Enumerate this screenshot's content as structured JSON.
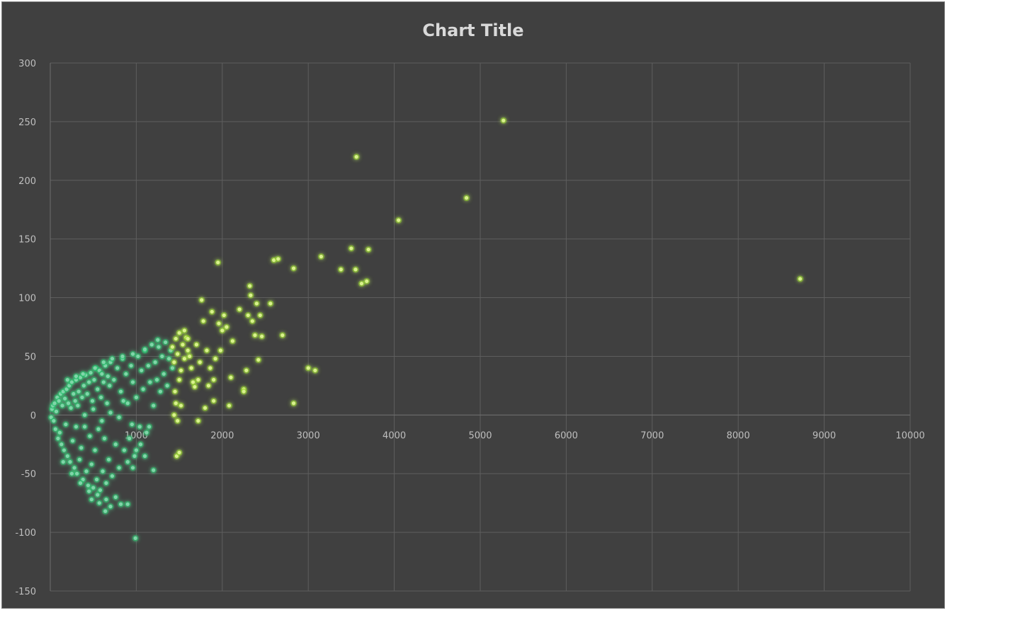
{
  "chart_data": {
    "type": "scatter",
    "title": "Chart Title",
    "xlabel": "",
    "ylabel": "",
    "xlim": [
      0,
      10000
    ],
    "ylim": [
      -150,
      300
    ],
    "x_ticks": [
      "1000",
      "2000",
      "3000",
      "4000",
      "5000",
      "6000",
      "7000",
      "8000",
      "9000",
      "10000"
    ],
    "y_ticks": [
      "300",
      "250",
      "200",
      "150",
      "100",
      "50",
      "0",
      "-50",
      "-100",
      "-150"
    ],
    "grid": true,
    "legend": "none",
    "series": [
      {
        "color": "#7fd6a8",
        "glow": "#1fc06a",
        "points": [
          [
            10,
            -2
          ],
          [
            20,
            5
          ],
          [
            30,
            8
          ],
          [
            40,
            -5
          ],
          [
            50,
            10
          ],
          [
            60,
            -12
          ],
          [
            70,
            3
          ],
          [
            80,
            15
          ],
          [
            90,
            -20
          ],
          [
            100,
            12
          ],
          [
            110,
            -15
          ],
          [
            120,
            18
          ],
          [
            130,
            -25
          ],
          [
            140,
            8
          ],
          [
            150,
            20
          ],
          [
            160,
            -30
          ],
          [
            170,
            14
          ],
          [
            180,
            -8
          ],
          [
            190,
            22
          ],
          [
            200,
            -35
          ],
          [
            210,
            10
          ],
          [
            220,
            25
          ],
          [
            230,
            -40
          ],
          [
            240,
            6
          ],
          [
            250,
            28
          ],
          [
            260,
            -22
          ],
          [
            270,
            18
          ],
          [
            280,
            -45
          ],
          [
            290,
            12
          ],
          [
            300,
            30
          ],
          [
            310,
            -50
          ],
          [
            320,
            8
          ],
          [
            330,
            20
          ],
          [
            340,
            -38
          ],
          [
            350,
            32
          ],
          [
            360,
            -28
          ],
          [
            370,
            15
          ],
          [
            380,
            -55
          ],
          [
            390,
            25
          ],
          [
            400,
            -10
          ],
          [
            410,
            34
          ],
          [
            420,
            -48
          ],
          [
            430,
            18
          ],
          [
            440,
            -60
          ],
          [
            450,
            28
          ],
          [
            460,
            -18
          ],
          [
            470,
            36
          ],
          [
            480,
            -42
          ],
          [
            490,
            12
          ],
          [
            500,
            -62
          ],
          [
            510,
            30
          ],
          [
            520,
            -30
          ],
          [
            530,
            40
          ],
          [
            540,
            -55
          ],
          [
            550,
            22
          ],
          [
            560,
            -12
          ],
          [
            570,
            38
          ],
          [
            580,
            -64
          ],
          [
            590,
            15
          ],
          [
            600,
            35
          ],
          [
            610,
            -48
          ],
          [
            620,
            28
          ],
          [
            630,
            -20
          ],
          [
            640,
            42
          ],
          [
            650,
            -58
          ],
          [
            660,
            10
          ],
          [
            670,
            33
          ],
          [
            680,
            -38
          ],
          [
            690,
            25
          ],
          [
            700,
            45
          ],
          [
            720,
            -52
          ],
          [
            740,
            30
          ],
          [
            760,
            -25
          ],
          [
            780,
            40
          ],
          [
            800,
            -45
          ],
          [
            820,
            20
          ],
          [
            840,
            48
          ],
          [
            860,
            -30
          ],
          [
            880,
            35
          ],
          [
            900,
            10
          ],
          [
            920,
            -20
          ],
          [
            940,
            42
          ],
          [
            960,
            28
          ],
          [
            980,
            -35
          ],
          [
            1000,
            15
          ],
          [
            1020,
            50
          ],
          [
            1040,
            -10
          ],
          [
            1060,
            38
          ],
          [
            1080,
            22
          ],
          [
            1100,
            55
          ],
          [
            1120,
            -15
          ],
          [
            1140,
            42
          ],
          [
            1160,
            28
          ],
          [
            1180,
            60
          ],
          [
            1200,
            8
          ],
          [
            1220,
            45
          ],
          [
            1240,
            30
          ],
          [
            1260,
            58
          ],
          [
            1280,
            20
          ],
          [
            1300,
            50
          ],
          [
            1320,
            35
          ],
          [
            1340,
            62
          ],
          [
            1360,
            25
          ],
          [
            1380,
            48
          ],
          [
            1400,
            55
          ],
          [
            1420,
            40
          ],
          [
            150,
            -40
          ],
          [
            250,
            -50
          ],
          [
            350,
            -58
          ],
          [
            450,
            -65
          ],
          [
            550,
            -68
          ],
          [
            650,
            -72
          ],
          [
            700,
            -78
          ],
          [
            760,
            -70
          ],
          [
            820,
            -76
          ],
          [
            900,
            -76
          ],
          [
            480,
            -72
          ],
          [
            570,
            -75
          ],
          [
            640,
            -82
          ],
          [
            990,
            -105
          ],
          [
            1000,
            -30
          ],
          [
            1100,
            -35
          ],
          [
            1200,
            -47
          ],
          [
            900,
            -40
          ],
          [
            960,
            -45
          ],
          [
            300,
            -10
          ],
          [
            400,
            0
          ],
          [
            500,
            5
          ],
          [
            600,
            -5
          ],
          [
            700,
            2
          ],
          [
            800,
            -2
          ],
          [
            850,
            12
          ],
          [
            950,
            -8
          ],
          [
            1050,
            -25
          ],
          [
            1150,
            -10
          ],
          [
            200,
            30
          ],
          [
            300,
            33
          ],
          [
            380,
            35
          ],
          [
            520,
            40
          ],
          [
            620,
            45
          ],
          [
            720,
            48
          ],
          [
            840,
            50
          ],
          [
            960,
            52
          ],
          [
            1100,
            56
          ],
          [
            1250,
            64
          ]
        ]
      },
      {
        "color": "#d9f28c",
        "glow": "#8fd11a",
        "points": [
          [
            1420,
            58
          ],
          [
            1440,
            45
          ],
          [
            1460,
            65
          ],
          [
            1480,
            52
          ],
          [
            1500,
            70
          ],
          [
            1520,
            38
          ],
          [
            1540,
            60
          ],
          [
            1560,
            48
          ],
          [
            1580,
            66
          ],
          [
            1600,
            55
          ],
          [
            1450,
            20
          ],
          [
            1460,
            10
          ],
          [
            1480,
            -5
          ],
          [
            1500,
            30
          ],
          [
            1520,
            8
          ],
          [
            1440,
            0
          ],
          [
            1470,
            -35
          ],
          [
            1500,
            -32
          ],
          [
            1560,
            72
          ],
          [
            1600,
            65
          ],
          [
            1620,
            50
          ],
          [
            1640,
            40
          ],
          [
            1660,
            28
          ],
          [
            1680,
            24
          ],
          [
            1700,
            60
          ],
          [
            1720,
            30
          ],
          [
            1740,
            45
          ],
          [
            1760,
            98
          ],
          [
            1780,
            80
          ],
          [
            1800,
            6
          ],
          [
            1820,
            55
          ],
          [
            1840,
            25
          ],
          [
            1860,
            40
          ],
          [
            1880,
            88
          ],
          [
            1900,
            12
          ],
          [
            1920,
            48
          ],
          [
            1950,
            130
          ],
          [
            1960,
            78
          ],
          [
            1980,
            55
          ],
          [
            2000,
            72
          ],
          [
            2020,
            85
          ],
          [
            2050,
            75
          ],
          [
            2080,
            8
          ],
          [
            2100,
            32
          ],
          [
            2120,
            63
          ],
          [
            2200,
            90
          ],
          [
            2250,
            22
          ],
          [
            2280,
            38
          ],
          [
            2300,
            85
          ],
          [
            2320,
            110
          ],
          [
            2330,
            102
          ],
          [
            2350,
            80
          ],
          [
            2380,
            68
          ],
          [
            2400,
            95
          ],
          [
            2420,
            47
          ],
          [
            2440,
            85
          ],
          [
            2460,
            67
          ],
          [
            2560,
            95
          ],
          [
            2600,
            132
          ],
          [
            2650,
            133
          ],
          [
            2700,
            68
          ],
          [
            2830,
            125
          ],
          [
            2830,
            10
          ],
          [
            3000,
            40
          ],
          [
            3080,
            38
          ],
          [
            3150,
            135
          ],
          [
            3380,
            124
          ],
          [
            3500,
            142
          ],
          [
            3550,
            124
          ],
          [
            3560,
            220
          ],
          [
            3620,
            112
          ],
          [
            3680,
            114
          ],
          [
            3700,
            141
          ],
          [
            4050,
            166
          ],
          [
            4840,
            185
          ],
          [
            5270,
            251
          ],
          [
            8720,
            116
          ],
          [
            1720,
            -5
          ],
          [
            1900,
            30
          ],
          [
            2250,
            20
          ]
        ]
      }
    ]
  }
}
